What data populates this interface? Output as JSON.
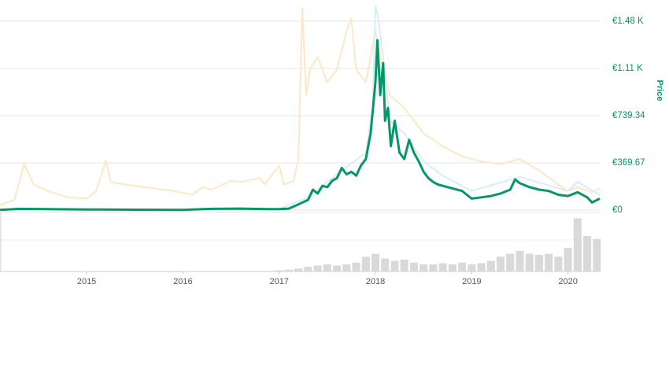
{
  "chart_data": [
    {
      "type": "line",
      "ylabel": "Price",
      "xlim": [
        2014.1,
        2020.33
      ],
      "ylim": [
        0,
        1614
      ],
      "yticks": [
        {
          "value": 0,
          "label": "€0"
        },
        {
          "value": 369.67,
          "label": "€369.67"
        },
        {
          "value": 739.34,
          "label": "€739.34"
        },
        {
          "value": 1110,
          "label": "€1.11 K"
        },
        {
          "value": 1480,
          "label": "€1.48 K"
        }
      ],
      "grid": true,
      "tick_color": "#079669",
      "series": [
        {
          "color": "#fde8c6",
          "width": 2,
          "x": [
            2014.1,
            2014.25,
            2014.35,
            2014.45,
            2014.6,
            2014.8,
            2015.0,
            2015.1,
            2015.2,
            2015.25,
            2015.4,
            2015.6,
            2015.9,
            2016.1,
            2016.2,
            2016.3,
            2016.5,
            2016.6,
            2016.8,
            2016.85,
            2017.0,
            2017.05,
            2017.15,
            2017.2,
            2017.24,
            2017.28,
            2017.32,
            2017.4,
            2017.5,
            2017.6,
            2017.7,
            2017.75,
            2017.8,
            2017.9,
            2018.0,
            2018.05,
            2018.15,
            2018.3,
            2018.5,
            2018.7,
            2018.9,
            2019.1,
            2019.3,
            2019.5,
            2019.7,
            2019.9,
            2020.0,
            2020.1,
            2020.25,
            2020.33
          ],
          "values": [
            40,
            80,
            360,
            200,
            150,
            100,
            90,
            150,
            390,
            220,
            200,
            180,
            150,
            120,
            180,
            160,
            230,
            220,
            250,
            200,
            350,
            200,
            230,
            400,
            1580,
            900,
            1100,
            1200,
            1000,
            1100,
            1400,
            1500,
            1100,
            1000,
            1400,
            1200,
            900,
            800,
            600,
            500,
            420,
            380,
            360,
            400,
            310,
            200,
            150,
            180,
            140,
            170
          ]
        },
        {
          "color": "#d6eef8",
          "width": 2,
          "x": [
            2014.1,
            2017.0,
            2017.3,
            2017.6,
            2017.9,
            2017.97,
            2018.0,
            2018.03,
            2018.08,
            2018.15,
            2018.3,
            2018.5,
            2018.7,
            2019.0,
            2019.5,
            2020.0,
            2020.1,
            2020.33
          ],
          "values": [
            2,
            10,
            100,
            280,
            450,
            800,
            1600,
            1500,
            1200,
            700,
            600,
            380,
            270,
            150,
            260,
            150,
            220,
            120
          ]
        },
        {
          "color": "#079669",
          "width": 3,
          "x": [
            2014.1,
            2014.3,
            2014.6,
            2015.0,
            2015.5,
            2016.0,
            2016.3,
            2016.6,
            2016.9,
            2017.0,
            2017.1,
            2017.2,
            2017.3,
            2017.35,
            2017.4,
            2017.45,
            2017.5,
            2017.55,
            2017.6,
            2017.65,
            2017.7,
            2017.75,
            2017.8,
            2017.85,
            2017.9,
            2017.95,
            2018.0,
            2018.02,
            2018.05,
            2018.08,
            2018.1,
            2018.13,
            2018.16,
            2018.2,
            2018.25,
            2018.3,
            2018.35,
            2018.4,
            2018.45,
            2018.5,
            2018.55,
            2018.6,
            2018.65,
            2018.7,
            2018.8,
            2018.9,
            2019.0,
            2019.1,
            2019.2,
            2019.3,
            2019.4,
            2019.45,
            2019.5,
            2019.6,
            2019.7,
            2019.8,
            2019.9,
            2020.0,
            2020.1,
            2020.2,
            2020.25,
            2020.33
          ],
          "values": [
            2,
            10,
            8,
            5,
            3,
            2,
            10,
            12,
            8,
            8,
            12,
            45,
            80,
            160,
            130,
            190,
            180,
            230,
            250,
            330,
            280,
            300,
            270,
            350,
            400,
            600,
            1000,
            1330,
            900,
            1150,
            700,
            800,
            500,
            700,
            450,
            400,
            550,
            450,
            380,
            300,
            250,
            220,
            200,
            190,
            170,
            150,
            90,
            100,
            110,
            130,
            160,
            240,
            210,
            180,
            160,
            150,
            120,
            110,
            140,
            100,
            60,
            90
          ]
        }
      ]
    },
    {
      "type": "bar",
      "color": "#d9d9d9",
      "xlim": [
        2014.1,
        2020.33
      ],
      "ylim": [
        0,
        100
      ],
      "xticks": [
        2015,
        2016,
        2017,
        2018,
        2019,
        2020
      ],
      "x": [
        2017.0,
        2017.1,
        2017.2,
        2017.3,
        2017.4,
        2017.5,
        2017.6,
        2017.7,
        2017.8,
        2017.9,
        2018.0,
        2018.1,
        2018.2,
        2018.3,
        2018.4,
        2018.5,
        2018.6,
        2018.7,
        2018.8,
        2018.9,
        2019.0,
        2019.1,
        2019.2,
        2019.3,
        2019.4,
        2019.5,
        2019.6,
        2019.7,
        2019.8,
        2019.9,
        2020.0,
        2020.1,
        2020.2,
        2020.3
      ],
      "values": [
        2,
        3,
        5,
        8,
        10,
        12,
        10,
        12,
        15,
        25,
        30,
        22,
        18,
        20,
        15,
        12,
        12,
        14,
        12,
        15,
        12,
        14,
        18,
        25,
        30,
        35,
        30,
        28,
        30,
        25,
        40,
        90,
        60,
        55
      ]
    }
  ]
}
